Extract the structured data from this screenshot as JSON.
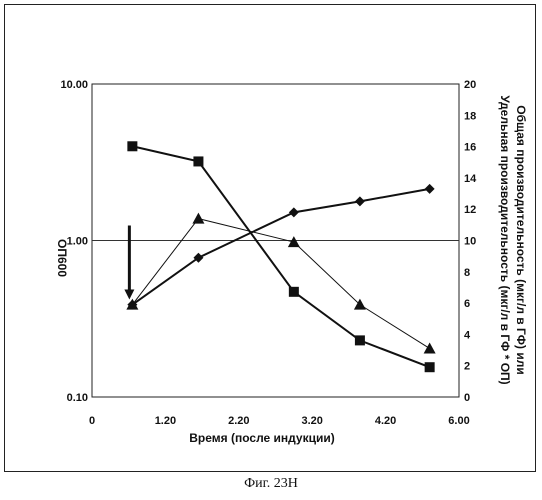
{
  "caption": "Фиг. 23H",
  "chart_data": {
    "type": "line",
    "xlabel": "Время (после индукции)",
    "ylabel_left": "ОП600",
    "ylabel_right_line1": "Общая производительность (мкг/л в ГФ) или",
    "ylabel_right_line2": "Удельная производительность (мкг/л в ГФ * ОП)",
    "x_ticks": [
      "0",
      "1.20",
      "2.20",
      "3.20",
      "4.20",
      "6.00"
    ],
    "x_tick_values": [
      0.2,
      1.2,
      2.2,
      3.2,
      4.2,
      5.2
    ],
    "xlim": [
      0.2,
      5.2
    ],
    "y_left_ticks": [
      "0.10",
      "1.00",
      "10.00"
    ],
    "y_left_tick_values": [
      0.1,
      1.0,
      10.0
    ],
    "y_left_scale": "log",
    "ylim_left": [
      0.1,
      10.0
    ],
    "y_right_ticks": [
      "0",
      "2",
      "4",
      "6",
      "8",
      "10",
      "12",
      "14",
      "16",
      "18",
      "20"
    ],
    "ylim_right": [
      0,
      20
    ],
    "grid": "horizontal line at 1.00 only",
    "annotation": "downward arrow at x≈0.75",
    "series": [
      {
        "axis": "left",
        "marker": "square",
        "x": [
          0.75,
          1.65,
          2.95,
          3.85,
          4.8
        ],
        "y": [
          4.0,
          3.2,
          0.47,
          0.23,
          0.155
        ]
      },
      {
        "axis": "right",
        "marker": "diamond",
        "x": [
          0.75,
          1.65,
          2.95,
          3.85,
          4.8
        ],
        "y": [
          5.9,
          8.9,
          11.8,
          12.5,
          13.3
        ]
      },
      {
        "axis": "right",
        "marker": "triangle",
        "x": [
          0.75,
          1.65,
          2.95,
          3.85,
          4.8
        ],
        "y": [
          5.9,
          11.4,
          9.9,
          5.9,
          3.1
        ]
      }
    ]
  }
}
